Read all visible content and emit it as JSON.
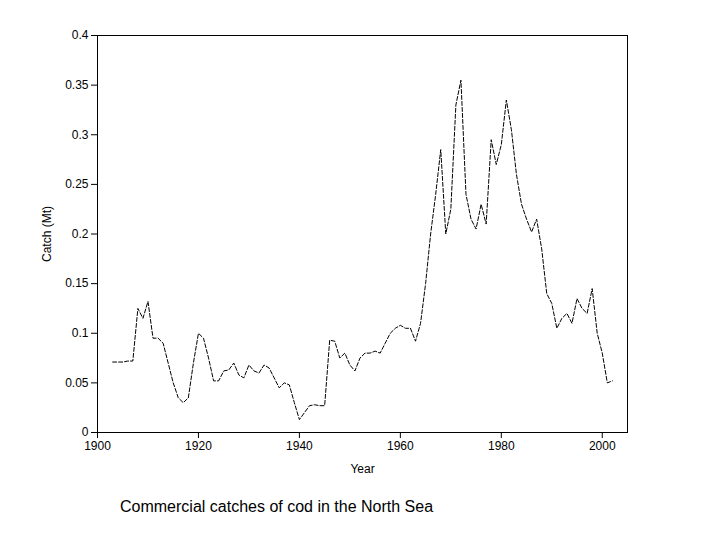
{
  "chart_data": {
    "type": "line",
    "caption": "Commercial catches of cod in the North Sea",
    "x_label": "Year",
    "y_label": "Catch (Mt)",
    "color": "#000000",
    "line_style": "dashed",
    "grid": false,
    "xlim": [
      1900,
      2005
    ],
    "xticks": [
      1900,
      1920,
      1940,
      1960,
      1980,
      2000
    ],
    "ylim": [
      0,
      0.4
    ],
    "yticks": [
      0,
      0.05,
      0.1,
      0.15,
      0.2,
      0.25,
      0.3,
      0.35,
      0.4
    ],
    "x": [
      1903,
      1904,
      1905,
      1906,
      1907,
      1908,
      1909,
      1910,
      1911,
      1912,
      1913,
      1914,
      1915,
      1916,
      1917,
      1918,
      1919,
      1920,
      1921,
      1922,
      1923,
      1924,
      1925,
      1926,
      1927,
      1928,
      1929,
      1930,
      1931,
      1932,
      1933,
      1934,
      1935,
      1936,
      1937,
      1938,
      1939,
      1940,
      1941,
      1942,
      1943,
      1944,
      1945,
      1946,
      1947,
      1948,
      1949,
      1950,
      1951,
      1952,
      1953,
      1954,
      1955,
      1956,
      1957,
      1958,
      1959,
      1960,
      1961,
      1962,
      1963,
      1964,
      1965,
      1966,
      1967,
      1968,
      1969,
      1970,
      1971,
      1972,
      1973,
      1974,
      1975,
      1976,
      1977,
      1978,
      1979,
      1980,
      1981,
      1982,
      1983,
      1984,
      1985,
      1986,
      1987,
      1988,
      1989,
      1990,
      1991,
      1992,
      1993,
      1994,
      1995,
      1996,
      1997,
      1998,
      1999,
      2000,
      2001,
      2002
    ],
    "values": [
      0.071,
      0.071,
      0.071,
      0.072,
      0.072,
      0.125,
      0.115,
      0.132,
      0.095,
      0.095,
      0.09,
      0.07,
      0.05,
      0.035,
      0.03,
      0.035,
      0.07,
      0.1,
      0.095,
      0.075,
      0.052,
      0.052,
      0.062,
      0.063,
      0.07,
      0.058,
      0.055,
      0.068,
      0.062,
      0.06,
      0.068,
      0.065,
      0.055,
      0.045,
      0.05,
      0.048,
      0.03,
      0.013,
      0.02,
      0.027,
      0.028,
      0.027,
      0.027,
      0.093,
      0.092,
      0.075,
      0.08,
      0.068,
      0.062,
      0.075,
      0.08,
      0.08,
      0.082,
      0.08,
      0.09,
      0.1,
      0.105,
      0.108,
      0.105,
      0.105,
      0.092,
      0.11,
      0.15,
      0.2,
      0.24,
      0.285,
      0.2,
      0.225,
      0.33,
      0.355,
      0.24,
      0.215,
      0.205,
      0.23,
      0.21,
      0.295,
      0.27,
      0.29,
      0.335,
      0.305,
      0.26,
      0.23,
      0.215,
      0.202,
      0.215,
      0.185,
      0.14,
      0.13,
      0.105,
      0.115,
      0.12,
      0.11,
      0.135,
      0.125,
      0.12,
      0.145,
      0.1,
      0.08,
      0.05,
      0.052
    ]
  }
}
